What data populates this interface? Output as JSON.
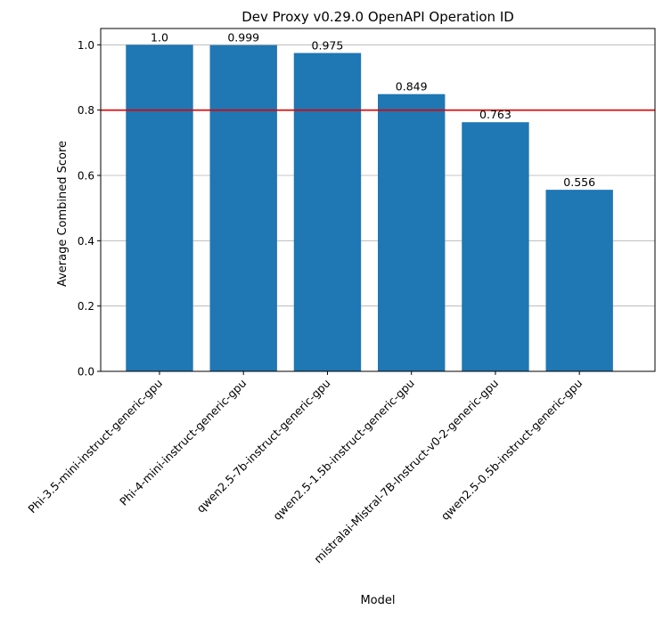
{
  "chart_data": {
    "type": "bar",
    "title": "Dev Proxy v0.29.0 OpenAPI Operation ID",
    "xlabel": "Model",
    "ylabel": "Average Combined Score",
    "categories": [
      "Phi-3.5-mini-instruct-generic-gpu",
      "Phi-4-mini-instruct-generic-gpu",
      "qwen2.5-7b-instruct-generic-gpu",
      "qwen2.5-1.5b-instruct-generic-gpu",
      "mistralai-Mistral-7B-Instruct-v0-2-generic-gpu",
      "qwen2.5-0.5b-instruct-generic-gpu"
    ],
    "values": [
      1.0,
      0.999,
      0.975,
      0.849,
      0.763,
      0.556
    ],
    "value_labels": [
      "1.0",
      "0.999",
      "0.975",
      "0.849",
      "0.763",
      "0.556"
    ],
    "ylim": [
      0,
      1.05
    ],
    "yticks": [
      0.0,
      0.2,
      0.4,
      0.6,
      0.8,
      1.0
    ],
    "ytick_labels": [
      "0.0",
      "0.2",
      "0.4",
      "0.6",
      "0.8",
      "1.0"
    ],
    "threshold": 0.8,
    "grid": "horizontal",
    "colors": {
      "bar": "#1f77b4",
      "threshold": "#e00000",
      "grid": "#b0b0b0",
      "axis": "#000000"
    }
  }
}
